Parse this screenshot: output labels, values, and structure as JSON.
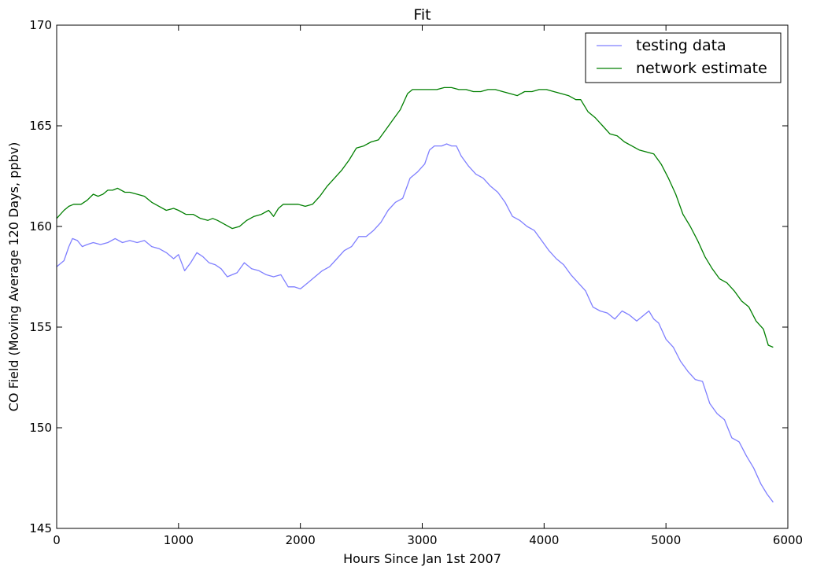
{
  "chart_data": {
    "type": "line",
    "title": "Fit",
    "xlabel": "Hours Since Jan 1st 2007",
    "ylabel": "CO Field (Moving Average 120 Days, ppbv)",
    "xlim": [
      0,
      6000
    ],
    "ylim": [
      145,
      170
    ],
    "xticks": [
      "0",
      "1000",
      "2000",
      "3000",
      "4000",
      "5000",
      "6000"
    ],
    "yticks": [
      "145",
      "150",
      "155",
      "160",
      "165",
      "170"
    ],
    "grid": false,
    "legend_position": "top-right",
    "series": [
      {
        "name": "testing data",
        "color": "#7f7fff",
        "x": [
          0,
          60,
          100,
          130,
          170,
          210,
          250,
          300,
          360,
          420,
          480,
          540,
          600,
          660,
          720,
          780,
          840,
          900,
          960,
          1000,
          1050,
          1100,
          1150,
          1200,
          1250,
          1300,
          1350,
          1400,
          1440,
          1480,
          1540,
          1600,
          1660,
          1720,
          1780,
          1840,
          1900,
          1950,
          2000,
          2060,
          2120,
          2180,
          2240,
          2300,
          2360,
          2420,
          2480,
          2540,
          2600,
          2660,
          2720,
          2780,
          2840,
          2900,
          2960,
          3020,
          3060,
          3100,
          3160,
          3200,
          3240,
          3280,
          3320,
          3380,
          3440,
          3500,
          3560,
          3620,
          3680,
          3740,
          3800,
          3860,
          3920,
          3980,
          4040,
          4100,
          4160,
          4220,
          4280,
          4340,
          4400,
          4460,
          4520,
          4580,
          4640,
          4700,
          4760,
          4820,
          4860,
          4900,
          4940,
          5000,
          5060,
          5120,
          5180,
          5240,
          5300,
          5360,
          5420,
          5480,
          5540,
          5600,
          5660,
          5720,
          5780,
          5830,
          5880
        ],
        "values": [
          158.0,
          158.3,
          159.0,
          159.4,
          159.3,
          159.0,
          159.1,
          159.2,
          159.1,
          159.2,
          159.4,
          159.2,
          159.3,
          159.2,
          159.3,
          159.0,
          158.9,
          158.7,
          158.4,
          158.6,
          157.8,
          158.2,
          158.7,
          158.5,
          158.2,
          158.1,
          157.9,
          157.5,
          157.6,
          157.7,
          158.2,
          157.9,
          157.8,
          157.6,
          157.5,
          157.6,
          157.0,
          157.0,
          156.9,
          157.2,
          157.5,
          157.8,
          158.0,
          158.4,
          158.8,
          159.0,
          159.5,
          159.5,
          159.8,
          160.2,
          160.8,
          161.2,
          161.4,
          162.4,
          162.7,
          163.1,
          163.8,
          164.0,
          164.0,
          164.1,
          164.0,
          164.0,
          163.5,
          163.0,
          162.6,
          162.4,
          162.0,
          161.7,
          161.2,
          160.5,
          160.3,
          160.0,
          159.8,
          159.3,
          158.8,
          158.4,
          158.1,
          157.6,
          157.2,
          156.8,
          156.0,
          155.8,
          155.7,
          155.4,
          155.8,
          155.6,
          155.3,
          155.6,
          155.8,
          155.4,
          155.2,
          154.4,
          154.0,
          153.3,
          152.8,
          152.4,
          152.3,
          151.2,
          150.7,
          150.4,
          149.5,
          149.3,
          148.6,
          148.0,
          147.2,
          146.7,
          146.3
        ]
      },
      {
        "name": "network estimate",
        "color": "#007f00",
        "x": [
          0,
          60,
          100,
          140,
          200,
          250,
          300,
          340,
          380,
          420,
          460,
          500,
          560,
          600,
          660,
          720,
          780,
          840,
          900,
          960,
          1000,
          1060,
          1120,
          1180,
          1240,
          1280,
          1320,
          1380,
          1440,
          1500,
          1560,
          1620,
          1680,
          1740,
          1780,
          1820,
          1860,
          1920,
          1980,
          2040,
          2100,
          2160,
          2220,
          2280,
          2340,
          2400,
          2460,
          2520,
          2580,
          2640,
          2700,
          2760,
          2820,
          2880,
          2920,
          2960,
          3000,
          3060,
          3120,
          3180,
          3240,
          3300,
          3360,
          3420,
          3480,
          3540,
          3600,
          3660,
          3720,
          3780,
          3840,
          3900,
          3960,
          4020,
          4080,
          4140,
          4200,
          4260,
          4300,
          4360,
          4420,
          4480,
          4540,
          4600,
          4660,
          4720,
          4780,
          4840,
          4900,
          4960,
          5020,
          5080,
          5140,
          5200,
          5260,
          5320,
          5380,
          5440,
          5500,
          5560,
          5620,
          5680,
          5740,
          5800,
          5840,
          5880
        ],
        "values": [
          160.4,
          160.8,
          161.0,
          161.1,
          161.1,
          161.3,
          161.6,
          161.5,
          161.6,
          161.8,
          161.8,
          161.9,
          161.7,
          161.7,
          161.6,
          161.5,
          161.2,
          161.0,
          160.8,
          160.9,
          160.8,
          160.6,
          160.6,
          160.4,
          160.3,
          160.4,
          160.3,
          160.1,
          159.9,
          160.0,
          160.3,
          160.5,
          160.6,
          160.8,
          160.5,
          160.9,
          161.1,
          161.1,
          161.1,
          161.0,
          161.1,
          161.5,
          162.0,
          162.4,
          162.8,
          163.3,
          163.9,
          164.0,
          164.2,
          164.3,
          164.8,
          165.3,
          165.8,
          166.6,
          166.8,
          166.8,
          166.8,
          166.8,
          166.8,
          166.9,
          166.9,
          166.8,
          166.8,
          166.7,
          166.7,
          166.8,
          166.8,
          166.7,
          166.6,
          166.5,
          166.7,
          166.7,
          166.8,
          166.8,
          166.7,
          166.6,
          166.5,
          166.3,
          166.3,
          165.7,
          165.4,
          165.0,
          164.6,
          164.5,
          164.2,
          164.0,
          163.8,
          163.7,
          163.6,
          163.1,
          162.4,
          161.6,
          160.6,
          160.0,
          159.3,
          158.5,
          157.9,
          157.4,
          157.2,
          156.8,
          156.3,
          156.0,
          155.3,
          154.9,
          154.1,
          154.0
        ]
      }
    ]
  }
}
